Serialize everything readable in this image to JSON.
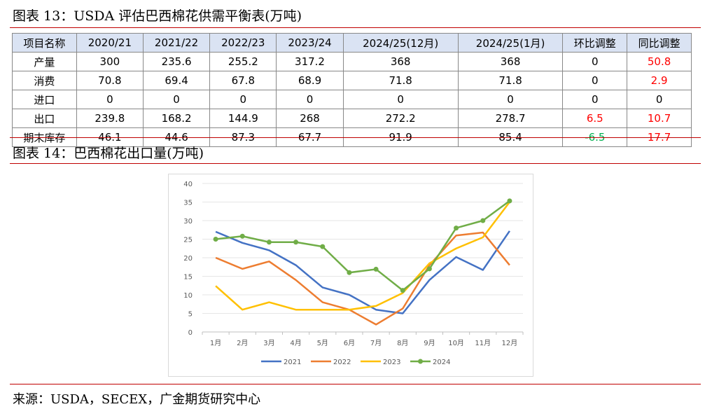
{
  "title1": "图表 13：USDA 评估巴西棉花供需平衡表(万吨)",
  "table": {
    "headers": [
      "项目名称",
      "2020/21",
      "2021/22",
      "2022/23",
      "2023/24",
      "2024/25(12月)",
      "2024/25(1月)",
      "环比调整",
      "同比调整"
    ],
    "rows": [
      [
        "产量",
        "300",
        "235.6",
        "255.2",
        "317.2",
        "368",
        "368",
        "0",
        "50.8"
      ],
      [
        "消费",
        "70.8",
        "69.4",
        "67.8",
        "68.9",
        "71.8",
        "71.8",
        "0",
        "2.9"
      ],
      [
        "进口",
        "0",
        "0",
        "0",
        "0",
        "0",
        "0",
        "0",
        "0"
      ],
      [
        "出口",
        "239.8",
        "168.2",
        "144.9",
        "268",
        "272.2",
        "278.7",
        "6.5",
        "10.7"
      ],
      [
        "期末库存",
        "46.1",
        "44.6",
        "87.3",
        "67.7",
        "91.9",
        "85.4",
        "-6.5",
        "17.7"
      ]
    ],
    "cell_colors": {
      "0-8": "red",
      "1-8": "red",
      "3-7": "red",
      "3-8": "red",
      "4-7": "green",
      "4-8": "red"
    }
  },
  "title2": "图表 14：巴西棉花出口量(万吨)",
  "source": "来源：USDA，SECEX，广金期货研究中心",
  "chart_data": {
    "type": "line",
    "categories": [
      "1月",
      "2月",
      "3月",
      "4月",
      "5月",
      "6月",
      "7月",
      "8月",
      "9月",
      "10月",
      "11月",
      "12月"
    ],
    "ylim": [
      0,
      40
    ],
    "yticks": [
      0,
      5,
      10,
      15,
      20,
      25,
      30,
      35,
      40
    ],
    "grid": true,
    "legend": "bottom",
    "series": [
      {
        "name": "2021",
        "color": "#4472c4",
        "markers": false,
        "values": [
          27,
          24,
          22,
          18,
          12,
          10,
          6,
          5,
          14,
          20.2,
          16.7,
          27.2
        ]
      },
      {
        "name": "2022",
        "color": "#ed7d31",
        "markers": false,
        "values": [
          20,
          17,
          19,
          14,
          8,
          6,
          2,
          6.3,
          18,
          26,
          26.8,
          18
        ]
      },
      {
        "name": "2023",
        "color": "#ffc000",
        "markers": false,
        "values": [
          12.4,
          6,
          8,
          6,
          6,
          6,
          7,
          10.5,
          18.5,
          22.5,
          25.5,
          35
        ]
      },
      {
        "name": "2024",
        "color": "#70ad47",
        "markers": true,
        "values": [
          25,
          25.8,
          24.2,
          24.2,
          23,
          16,
          16.9,
          11.2,
          17,
          28,
          30,
          35.3
        ]
      }
    ]
  }
}
